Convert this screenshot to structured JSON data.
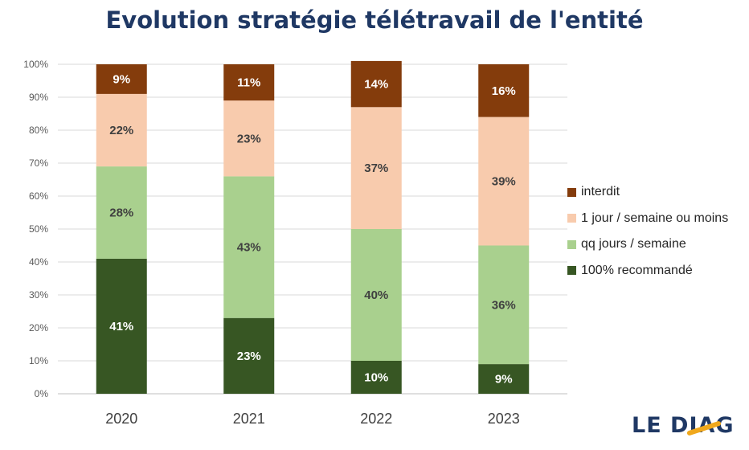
{
  "chart_data": {
    "type": "bar",
    "stacked": true,
    "title": "Evolution stratégie télétravail de l'entité",
    "categories": [
      "2020",
      "2021",
      "2022",
      "2023"
    ],
    "ylim": [
      0,
      100
    ],
    "yticks": [
      "0%",
      "10%",
      "20%",
      "30%",
      "40%",
      "50%",
      "60%",
      "70%",
      "80%",
      "90%",
      "100%"
    ],
    "grid": true,
    "legend_position": "right",
    "series": [
      {
        "name": "100%  recommandé",
        "color": "#375623",
        "label_color": "#ffffff",
        "values": [
          41,
          23,
          10,
          9
        ],
        "labels": [
          "41%",
          "23%",
          "10%",
          "9%"
        ]
      },
      {
        "name": "qq jours / semaine",
        "color": "#a9d08e",
        "label_color": "#404040",
        "values": [
          28,
          43,
          40,
          36
        ],
        "labels": [
          "28%",
          "43%",
          "40%",
          "36%"
        ]
      },
      {
        "name": "1 jour / semaine ou moins",
        "color": "#f8cbad",
        "label_color": "#404040",
        "values": [
          22,
          23,
          37,
          39
        ],
        "labels": [
          "22%",
          "23%",
          "37%",
          "39%"
        ]
      },
      {
        "name": "interdit",
        "color": "#843c0c",
        "label_color": "#ffffff",
        "values": [
          9,
          11,
          14,
          16
        ],
        "labels": [
          "9%",
          "11%",
          "14%",
          "16%"
        ]
      }
    ]
  },
  "logo": {
    "text": "LE DIAG",
    "accent_color": "#f0a81c"
  }
}
